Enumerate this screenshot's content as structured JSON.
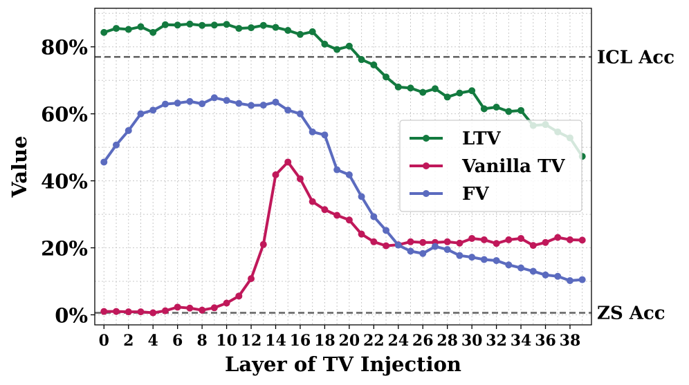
{
  "chart_data": {
    "type": "line",
    "xlabel": "Layer of TV Injection",
    "ylabel": "Value",
    "xlim": [
      -0.75,
      39.75
    ],
    "ylim": [
      -3.0,
      91.5
    ],
    "x_ticks": [
      0,
      2,
      4,
      6,
      8,
      10,
      12,
      14,
      16,
      18,
      20,
      22,
      24,
      26,
      28,
      30,
      32,
      34,
      36,
      38
    ],
    "x_tick_labels": [
      "0",
      "2",
      "4",
      "6",
      "8",
      "10",
      "12",
      "14",
      "16",
      "18",
      "20",
      "22",
      "24",
      "26",
      "28",
      "30",
      "32",
      "34",
      "36",
      "38"
    ],
    "y_ticks": [
      0,
      20,
      40,
      60,
      80
    ],
    "y_tick_labels": [
      "0%",
      "20%",
      "40%",
      "60%",
      "80%"
    ],
    "grid": true,
    "legend_position": "center-right",
    "reference_lines": [
      {
        "name": "ICL Acc",
        "value": 77.0,
        "color": "#666666"
      },
      {
        "name": "ZS Acc",
        "value": 0.6,
        "color": "#666666"
      }
    ],
    "x": [
      0,
      1,
      2,
      3,
      4,
      5,
      6,
      7,
      8,
      9,
      10,
      11,
      12,
      13,
      14,
      15,
      16,
      17,
      18,
      19,
      20,
      21,
      22,
      23,
      24,
      25,
      26,
      27,
      28,
      29,
      30,
      31,
      32,
      33,
      34,
      35,
      36,
      37,
      38,
      39
    ],
    "series": [
      {
        "name": "LTV",
        "color": "#137a3f",
        "values": [
          84.3,
          85.5,
          85.2,
          86.0,
          84.3,
          86.6,
          86.5,
          86.8,
          86.4,
          86.5,
          86.7,
          85.5,
          85.7,
          86.4,
          85.8,
          84.9,
          83.7,
          84.5,
          80.8,
          79.2,
          80.2,
          76.2,
          74.6,
          71.0,
          68.0,
          67.7,
          66.4,
          67.5,
          65.0,
          66.2,
          66.9,
          61.5,
          62.0,
          60.7,
          61.0,
          56.5,
          56.8,
          54.6,
          52.8,
          47.3
        ]
      },
      {
        "name": "Vanilla TV",
        "color": "#c0185a",
        "values": [
          1.0,
          1.0,
          0.9,
          0.9,
          0.6,
          1.2,
          2.3,
          2.0,
          1.4,
          2.1,
          3.5,
          5.6,
          10.8,
          21.0,
          41.8,
          45.6,
          40.6,
          33.8,
          31.4,
          29.7,
          28.3,
          24.1,
          21.8,
          20.6,
          20.9,
          21.8,
          21.6,
          21.6,
          21.8,
          21.4,
          22.8,
          22.4,
          21.3,
          22.4,
          22.8,
          20.7,
          21.6,
          23.1,
          22.4,
          22.3
        ]
      },
      {
        "name": "FV",
        "color": "#5b6bbf",
        "values": [
          45.6,
          50.7,
          55.0,
          60.0,
          61.1,
          62.9,
          63.2,
          63.7,
          63.0,
          64.8,
          64.0,
          63.1,
          62.5,
          62.6,
          63.5,
          61.1,
          60.0,
          54.6,
          53.7,
          43.3,
          41.8,
          35.3,
          29.3,
          25.2,
          20.8,
          19.0,
          18.3,
          20.4,
          19.5,
          17.7,
          17.2,
          16.5,
          16.2,
          14.9,
          14.0,
          13.0,
          11.9,
          11.5,
          10.2,
          10.5
        ]
      }
    ]
  }
}
